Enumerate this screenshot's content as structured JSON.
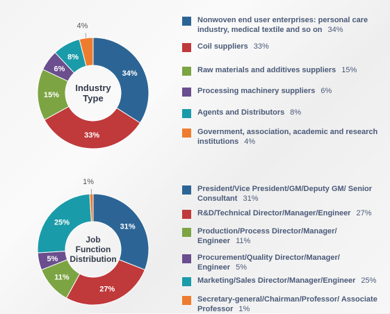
{
  "chart_data": [
    {
      "type": "pie",
      "title": "Industry Type",
      "title_lines": [
        "Industry",
        "Type"
      ],
      "categories": [
        "Nonwoven end user enterprises: personal care industry, medical textile and so on",
        "Coil suppliers",
        "Raw materials and additives suppliers",
        "Processing machinery suppliers",
        "Agents and Distributors",
        "Government, association, academic and research institutions"
      ],
      "values": [
        34,
        33,
        15,
        6,
        8,
        4
      ],
      "labels": [
        "34%",
        "33%",
        "15%",
        "6%",
        "8%",
        "4%"
      ],
      "colors": [
        "#2c6595",
        "#c0393b",
        "#7ca443",
        "#6a4e8d",
        "#1a9ba9",
        "#ee7c2f"
      ],
      "legend_position": "right"
    },
    {
      "type": "pie",
      "title": "Job Function Distribution",
      "title_lines": [
        "Job",
        "Function",
        "Distribution"
      ],
      "categories": [
        "President/Vice President/GM/Deputy GM/ Senior Consultant",
        "R&D/Technical Director/Manager/Engineer",
        "Production/Process Director/Manager/ Engineer",
        "Procurement/Quality Director/Manager/ Engineer",
        "Marketing/Sales Director/Manager/Engineer",
        "Secretary-general/Chairman/Professor/ Associate Professor"
      ],
      "values": [
        31,
        27,
        11,
        5,
        25,
        1
      ],
      "labels": [
        "31%",
        "27%",
        "11%",
        "5%",
        "25%",
        "1%"
      ],
      "colors": [
        "#2c6595",
        "#c0393b",
        "#7ca443",
        "#6a4e8d",
        "#1a9ba9",
        "#ee7c2f"
      ],
      "legend_position": "right"
    }
  ]
}
